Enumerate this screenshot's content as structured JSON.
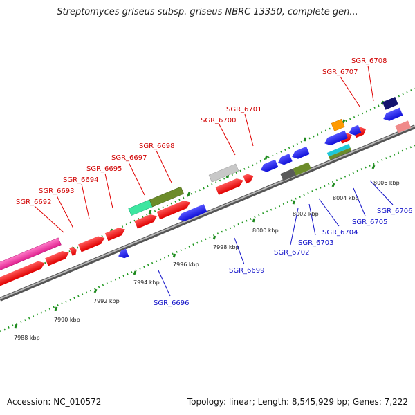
{
  "title": "Streptomyces griseus subsp. griseus NBRC 13350, complete gen...",
  "footer": {
    "accession": "Accession: NC_010572",
    "summary": "Topology: linear; Length: 8,545,929 bp; Genes: 7,222"
  },
  "scale_ticks": [
    "7988 kbp",
    "7990 kbp",
    "7992 kbp",
    "7994 kbp",
    "7996 kbp",
    "7998 kbp",
    "8000 kbp",
    "8002 kbp",
    "8004 kbp",
    "8006 kbp"
  ],
  "genes_top": [
    "SGR_6692",
    "SGR_6693",
    "SGR_6694",
    "SGR_6695",
    "SGR_6697",
    "SGR_6698",
    "SGR_6700",
    "SGR_6701",
    "SGR_6707",
    "SGR_6708"
  ],
  "genes_bottom": [
    "SGR_6696",
    "SGR_6699",
    "SGR_6702",
    "SGR_6703",
    "SGR_6704",
    "SGR_6705",
    "SGR_6706"
  ],
  "colors": {
    "forward": "#ff0000",
    "reverse": "#1a1aff",
    "backbone": "#808080",
    "tick": "#229922",
    "top_label": "#d00000",
    "bottom_label": "#1010c8"
  }
}
